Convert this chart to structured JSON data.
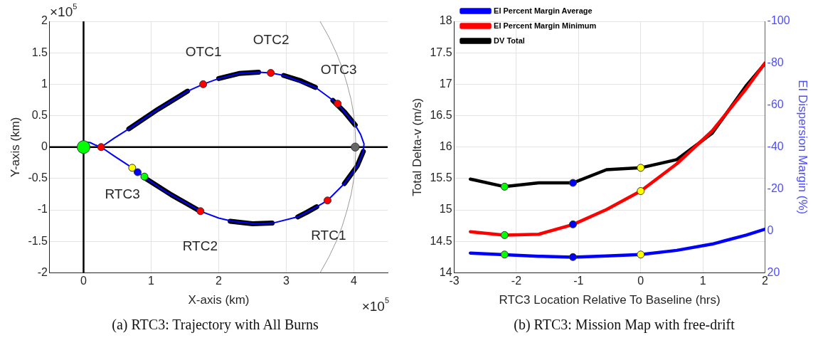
{
  "chart_data": [
    {
      "type": "line",
      "title": "(a) RTC3: Trajectory with All Burns",
      "xlabel": "X-axis (km)",
      "ylabel": "Y-axis (km)",
      "xlim": [
        -0.5,
        4.5
      ],
      "xticks": [
        0,
        1,
        2,
        3,
        4
      ],
      "ylim": [
        -2,
        2
      ],
      "yticks": [
        -2,
        -1.5,
        -1,
        -0.5,
        0,
        0.5,
        1,
        1.5,
        2
      ],
      "grid": true,
      "legend": false,
      "marker": "none",
      "series": [
        {
          "color": "#999999",
          "x": [
            3.5,
            3.63,
            3.74,
            3.83,
            3.9,
            3.96,
            4.0,
            4.02,
            4.03,
            4.02,
            4.0,
            3.96,
            3.9,
            3.83,
            3.74,
            3.63,
            3.5
          ],
          "values": [
            2,
            1.75,
            1.5,
            1.25,
            1,
            0.75,
            0.5,
            0.25,
            0,
            -0.25,
            -0.5,
            -0.75,
            -1,
            -1.25,
            -1.5,
            -1.75,
            -2
          ]
        },
        {
          "color": "#0000ff",
          "x": [
            0,
            0.04,
            0.1,
            0.18,
            0.26,
            0.45,
            0.72,
            0.8,
            0.9,
            1.2,
            1.5,
            1.73,
            2.0,
            2.2,
            2.55,
            2.8,
            3.17,
            3.45,
            3.61,
            3.86,
            4.05,
            4.14,
            4.15,
            4.1,
            4.02,
            3.76,
            3.43,
            2.96,
            2.77,
            2.59,
            2.3,
            2.0,
            1.77,
            1.54,
            1.1,
            0.67,
            0.45,
            0.26
          ],
          "values": [
            0,
            0.08,
            0.07,
            0.03,
            0,
            -0.14,
            -0.33,
            -0.4,
            -0.48,
            -0.7,
            -0.88,
            -1.02,
            -1.13,
            -1.18,
            -1.22,
            -1.21,
            -1.11,
            -0.95,
            -0.85,
            -0.58,
            -0.3,
            -0.07,
            0.05,
            0.2,
            0.35,
            0.69,
            0.95,
            1.14,
            1.18,
            1.19,
            1.17,
            1.09,
            1.0,
            0.89,
            0.6,
            0.29,
            0.14,
            0
          ]
        },
        {
          "color": "#000000",
          "x": [
            0.67,
            1.1,
            1.54
          ],
          "values": [
            0.29,
            0.6,
            0.89
          ]
        },
        {
          "color": "#000000",
          "x": [
            2.0,
            2.3,
            2.59
          ],
          "values": [
            1.09,
            1.17,
            1.19
          ]
        },
        {
          "color": "#000000",
          "x": [
            2.96,
            3.2,
            3.43
          ],
          "values": [
            1.14,
            1.06,
            0.95
          ]
        },
        {
          "color": "#000000",
          "x": [
            3.69,
            3.86,
            4.02
          ],
          "values": [
            0.74,
            0.56,
            0.35
          ]
        },
        {
          "color": "#000000",
          "x": [
            4.14,
            4.05,
            3.86
          ],
          "values": [
            -0.07,
            -0.3,
            -0.58
          ]
        },
        {
          "color": "#000000",
          "x": [
            3.17,
            3.3,
            3.45
          ],
          "values": [
            -1.11,
            -1.04,
            -0.95
          ]
        },
        {
          "color": "#000000",
          "x": [
            2.17,
            2.5,
            2.79
          ],
          "values": [
            -1.18,
            -1.22,
            -1.21
          ]
        },
        {
          "color": "#000000",
          "x": [
            0.89,
            1.3,
            1.69
          ],
          "values": [
            -0.48,
            -0.76,
            -1.0
          ]
        },
        {
          "type": "scatter",
          "marker": "circle",
          "color": "#ff0000",
          "x": [
            0.26,
            1.77,
            2.77,
            3.76,
            3.61,
            1.73
          ],
          "values": [
            0,
            1.0,
            1.18,
            0.69,
            -0.85,
            -1.02
          ]
        },
        {
          "type": "scatter",
          "marker": "circle",
          "colors": [
            "#ffff00",
            "#0000ff",
            "#00ff00"
          ],
          "x": [
            0.72,
            0.8,
            0.9
          ],
          "values": [
            -0.33,
            -0.4,
            -0.47
          ]
        },
        {
          "color": "#000000",
          "x": [
            0,
            0
          ],
          "values": [
            -2,
            2
          ]
        },
        {
          "color": "#000000",
          "x": [
            -0.5,
            4.5
          ],
          "values": [
            0,
            0
          ]
        },
        {
          "type": "bubble",
          "marker": "circle",
          "colors": [
            "#00ff00",
            "#666666"
          ],
          "x": [
            0,
            4.02
          ],
          "values": [
            0,
            0
          ],
          "sizes": [
            1,
            0.4
          ]
        }
      ],
      "annotations": [
        "×10$^{5}$",
        "×10$^{5}$",
        "OTC1",
        "OTC2",
        "OTC3",
        "RTC3",
        "RTC2",
        "RTC1"
      ]
    },
    {
      "type": "line",
      "title": "(b) RTC3: Mission Map with free-drift",
      "xlabel": "RTC3 Location Relative To Baseline (hrs)",
      "ylabel": "Total Delta-v (m/s)",
      "y2label": "EI Dispersion Margin (%)",
      "xlim": [
        -3,
        2
      ],
      "xticks": [
        -3,
        -2,
        -1,
        0,
        1,
        2
      ],
      "ylim": [
        14,
        18
      ],
      "yticks": [
        14,
        14.5,
        15,
        15.5,
        16,
        16.5,
        17,
        17.5,
        18
      ],
      "y2lim": [
        20,
        -100
      ],
      "y2ticks": [
        20,
        0,
        -20,
        -40,
        -60,
        -80,
        -100
      ],
      "grid": true,
      "legend": "top left",
      "marker": "none",
      "x": [
        -2.74,
        -2.19,
        -1.64,
        -1.09,
        -0.55,
        0,
        0.58,
        1.15,
        1.7,
        2.0
      ],
      "series": [
        {
          "name": "EI Percent Margin Average",
          "color": "#0000ff",
          "axis": "y2",
          "values": [
            10.6,
            11.4,
            12.1,
            12.6,
            12,
            11.3,
            9.3,
            6.3,
            2,
            -0.8
          ]
        },
        {
          "name": "EI Percent Margin Minimum",
          "color": "#ff0000",
          "axis": "y2",
          "values": [
            0.4,
            2,
            1.6,
            -3,
            -10.2,
            -19,
            -32,
            -47.7,
            -68,
            -80.2
          ]
        },
        {
          "name": "DV Total",
          "color": "#000000",
          "values": [
            15.49,
            15.37,
            15.43,
            15.43,
            15.64,
            15.67,
            15.8,
            16.22,
            16.98,
            17.33
          ]
        },
        {
          "type": "scatter",
          "marker": "circle",
          "color": "#00ff00",
          "x": [
            -2.19,
            -2.19,
            -2.19
          ],
          "values": [
            15.37,
            14.6,
            14.29
          ]
        },
        {
          "type": "scatter",
          "marker": "circle",
          "color": "#0000ff",
          "x": [
            -1.09,
            -1.09,
            -1.09
          ],
          "values": [
            15.43,
            14.77,
            14.25
          ]
        },
        {
          "type": "scatter",
          "marker": "circle",
          "color": "#ffff00",
          "x": [
            0,
            0,
            0
          ],
          "values": [
            15.67,
            15.3,
            14.29
          ]
        }
      ]
    }
  ]
}
